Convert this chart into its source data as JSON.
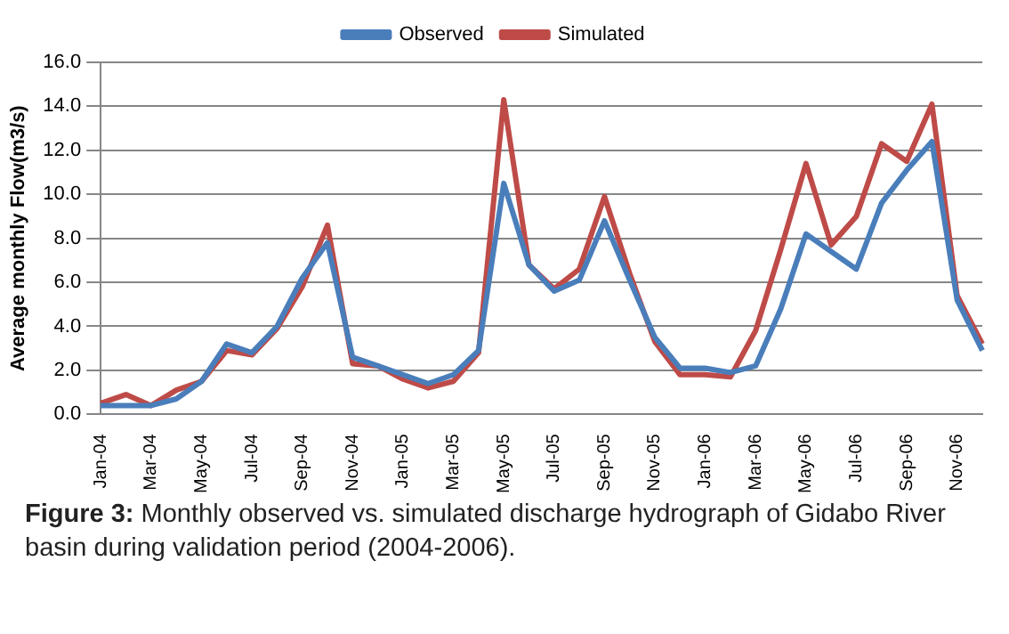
{
  "chart_data": {
    "type": "line",
    "ylabel": "Average monthly Flow(m3/s)",
    "categories": [
      "Jan-04",
      null,
      "Mar-04",
      null,
      "May-04",
      null,
      "Jul-04",
      null,
      "Sep-04",
      null,
      "Nov-04",
      null,
      "Jan-05",
      null,
      "Mar-05",
      null,
      "May-05",
      null,
      "Jul-05",
      null,
      "Sep-05",
      null,
      "Nov-05",
      null,
      "Jan-06",
      null,
      "Mar-06",
      null,
      "May-06",
      null,
      "Jul-06",
      null,
      "Sep-06",
      null,
      "Nov-06",
      null
    ],
    "series": [
      {
        "name": "Observed",
        "color": "#4a7ebb",
        "values": [
          0.4,
          0.4,
          0.4,
          0.7,
          1.5,
          3.2,
          2.8,
          4.0,
          6.2,
          7.8,
          2.6,
          2.2,
          1.8,
          1.4,
          1.8,
          2.9,
          10.5,
          6.8,
          5.6,
          6.1,
          8.8,
          6.1,
          3.5,
          2.1,
          2.1,
          1.9,
          2.2,
          4.8,
          8.2,
          7.4,
          6.6,
          9.6,
          11.1,
          12.4,
          5.2,
          2.9
        ]
      },
      {
        "name": "Simulated",
        "color": "#be4b48",
        "values": [
          0.5,
          0.9,
          0.4,
          1.1,
          1.5,
          2.9,
          2.7,
          3.9,
          5.8,
          8.6,
          2.3,
          2.2,
          1.6,
          1.2,
          1.5,
          2.8,
          14.3,
          6.8,
          5.7,
          6.6,
          9.9,
          6.4,
          3.3,
          1.8,
          1.8,
          1.7,
          3.8,
          7.5,
          11.4,
          7.7,
          9.0,
          12.3,
          11.5,
          14.1,
          5.4,
          3.2
        ]
      }
    ],
    "ylim": [
      0,
      16
    ],
    "yticks": [
      {
        "value": 0,
        "label": "0.0"
      },
      {
        "value": 2,
        "label": "2.0"
      },
      {
        "value": 4,
        "label": "4.0"
      },
      {
        "value": 6,
        "label": "6.0"
      },
      {
        "value": 8,
        "label": "8.0"
      },
      {
        "value": 10,
        "label": "10.0"
      },
      {
        "value": 12,
        "label": "12.0"
      },
      {
        "value": 14,
        "label": "14.0"
      },
      {
        "value": 16,
        "label": "16.0"
      }
    ],
    "grid": "y",
    "legend": "top",
    "marker": "none",
    "line_style": "solid",
    "annotations": [
      "Figure 3: Monthly observed vs. simulated discharge hydrograph of Gidabo River basin during validation period (2004-2006)."
    ]
  }
}
